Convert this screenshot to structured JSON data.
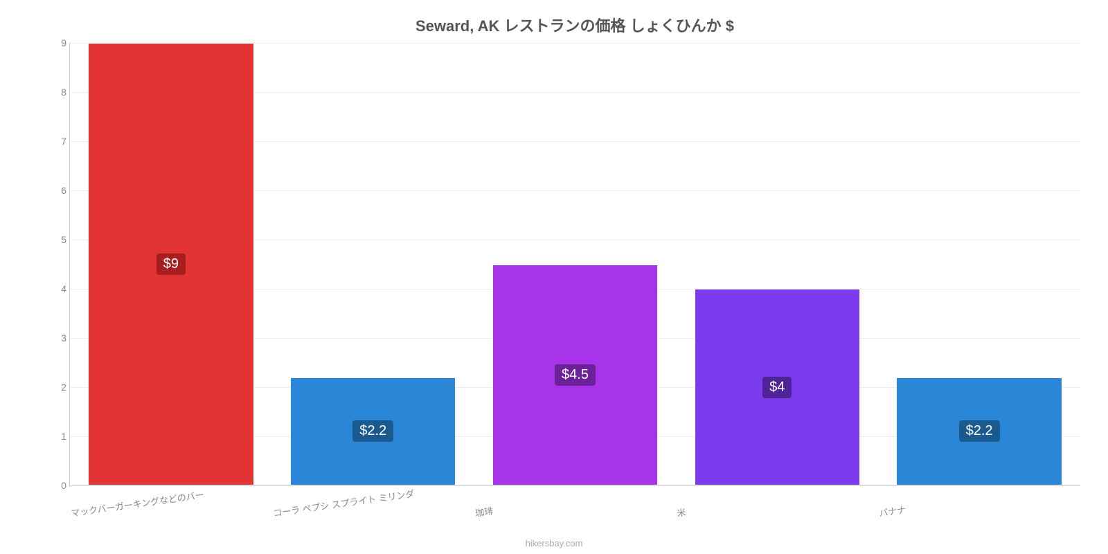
{
  "chart": {
    "type": "bar",
    "title": "Seward, AK レストランの価格 しょくひんか $",
    "title_fontsize": 22,
    "title_color": "#555555",
    "background_color": "#ffffff",
    "grid_color": "#eeeeee",
    "axis_line_color": "#cccccc",
    "tick_font_color": "#888888",
    "tick_fontsize": 14,
    "xlabel_fontsize": 13,
    "xlabel_rotation_deg": -8,
    "ylim": [
      0,
      9
    ],
    "yticks": [
      0,
      1,
      2,
      3,
      4,
      5,
      6,
      7,
      8,
      9
    ],
    "bar_width_ratio": 0.82,
    "categories": [
      "マックバーガーキングなどのバー",
      "コーラ ペプシ スプライト ミリンダ",
      "珈琲",
      "米",
      "バナナ"
    ],
    "values": [
      9,
      2.2,
      4.5,
      4,
      2.2
    ],
    "value_labels": [
      "$9",
      "$2.2",
      "$4.5",
      "$4",
      "$2.2"
    ],
    "bar_colors": [
      "#e23434",
      "#2a86d6",
      "#a733ea",
      "#7c3aed",
      "#2a86d6"
    ],
    "label_bg_colors": [
      "#a81e1e",
      "#1a5a8f",
      "#6b2198",
      "#4e2398",
      "#1a5a8f"
    ],
    "label_text_color": "#ffffff",
    "label_fontsize": 20,
    "attribution": "hikersbay.com",
    "attribution_color": "#aaaaaa",
    "attribution_fontsize": 13
  }
}
